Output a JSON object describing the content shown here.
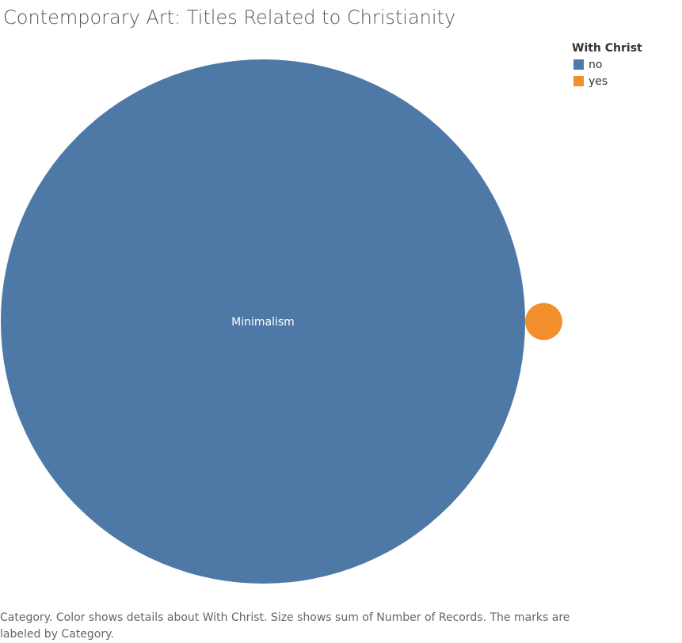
{
  "chart_data": {
    "type": "packed-bubble",
    "title": "Contemporary Art: Titles Related to Christianity",
    "legend": {
      "title": "With Christ",
      "placement": "top-right",
      "entries": [
        {
          "label": "no",
          "color": "#4e79a7"
        },
        {
          "label": "yes",
          "color": "#f28e2b"
        }
      ]
    },
    "bubbles": [
      {
        "category": "Minimalism",
        "with_christ": "no",
        "records": 200,
        "label": "Minimalism",
        "color": "#4e79a7"
      },
      {
        "category": "Minimalism",
        "with_christ": "yes",
        "records": 1,
        "label": "",
        "color": "#f28e2b"
      }
    ],
    "caption": "Category.  Color shows details about With Christ.  Size shows sum of Number of Records.  The marks are labeled by Category."
  }
}
